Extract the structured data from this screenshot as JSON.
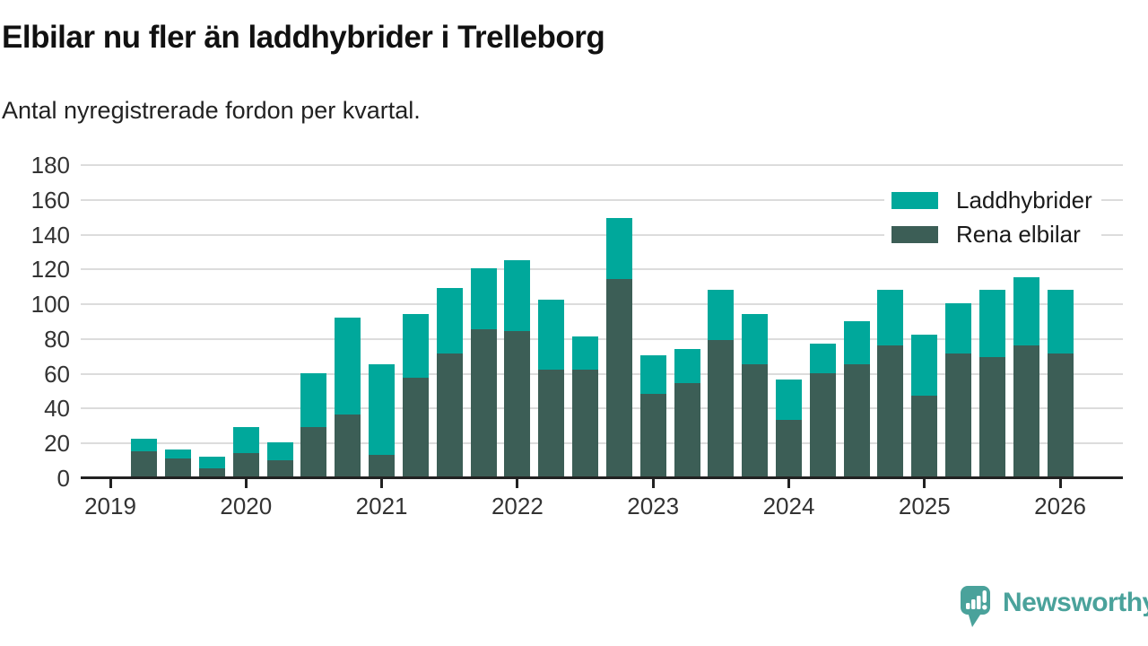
{
  "header": {
    "title": "Elbilar nu fler än laddhybrider i Trelleborg",
    "subtitle": "Antal nyregistrerade fordon per kvartal."
  },
  "chart_data": {
    "type": "bar",
    "stacked": true,
    "title": "Elbilar nu fler än laddhybrider i Trelleborg",
    "subtitle": "Antal nyregistrerade fordon per kvartal.",
    "xlabel": "",
    "ylabel": "Antal nyregistrerade fordon per kvartal",
    "ylim": [
      0,
      180
    ],
    "y_ticks": [
      0,
      20,
      40,
      60,
      80,
      100,
      120,
      140,
      160,
      180
    ],
    "x_tick_years": [
      "2019",
      "2020",
      "2021",
      "2022",
      "2023",
      "2024",
      "2025",
      "2026"
    ],
    "grid": "horizontal",
    "legend_position": "top-right",
    "categories": [
      "2019 Q2",
      "2019 Q3",
      "2019 Q4",
      "2020 Q1",
      "2020 Q2",
      "2020 Q3",
      "2020 Q4",
      "2021 Q1",
      "2021 Q2",
      "2021 Q3",
      "2021 Q4",
      "2022 Q1",
      "2022 Q2",
      "2022 Q3",
      "2022 Q4",
      "2023 Q1",
      "2023 Q2",
      "2023 Q3",
      "2023 Q4",
      "2024 Q1",
      "2024 Q2",
      "2024 Q3",
      "2024 Q4",
      "2025 Q1",
      "2025 Q2",
      "2025 Q3",
      "2025 Q4",
      "2026 Q1"
    ],
    "series": [
      {
        "name": "Rena elbilar",
        "color": "#3c5e56",
        "stack_order": "bottom",
        "values": [
          15,
          11,
          5,
          14,
          10,
          29,
          36,
          13,
          57,
          71,
          85,
          84,
          62,
          62,
          114,
          48,
          54,
          79,
          65,
          33,
          60,
          65,
          76,
          47,
          71,
          69,
          76,
          71
        ]
      },
      {
        "name": "Laddhybrider",
        "color": "#00a89b",
        "stack_order": "top",
        "values": [
          7,
          5,
          7,
          15,
          10,
          31,
          56,
          52,
          37,
          38,
          35,
          41,
          40,
          19,
          35,
          22,
          20,
          29,
          29,
          23,
          17,
          25,
          32,
          35,
          29,
          39,
          39,
          37
        ]
      }
    ],
    "stack_totals": [
      22,
      16,
      12,
      29,
      20,
      60,
      92,
      65,
      94,
      109,
      120,
      125,
      102,
      81,
      149,
      70,
      74,
      108,
      94,
      56,
      77,
      90,
      108,
      82,
      100,
      108,
      115,
      108
    ]
  },
  "legend": {
    "items": [
      {
        "label": "Laddhybrider",
        "color": "#00a89b"
      },
      {
        "label": "Rena elbilar",
        "color": "#3c5e56"
      }
    ]
  },
  "footer": {
    "brand": "Newsworthy",
    "brand_color": "#4aa29b"
  },
  "colors": {
    "laddhybrider": "#00a89b",
    "rena_elbilar": "#3c5e56",
    "grid": "#dcdcdc",
    "axis": "#222222",
    "text": "#111111",
    "tick_text": "#333333"
  }
}
